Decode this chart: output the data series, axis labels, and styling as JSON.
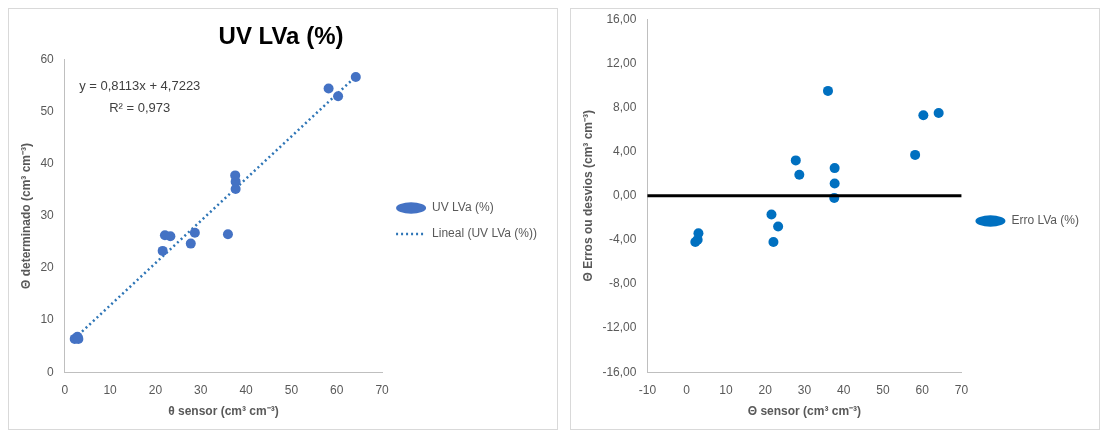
{
  "chart_data": [
    {
      "type": "scatter",
      "title": "UV LVa (%)",
      "xlabel": "θ sensor (cm³ cm⁻³)",
      "ylabel": "Θ determinado (cm³ cm⁻³)",
      "xlim": [
        0,
        70
      ],
      "xticks": [
        0,
        10,
        20,
        30,
        40,
        50,
        60,
        70
      ],
      "ylim": [
        0,
        60
      ],
      "yticks": [
        0,
        10,
        20,
        30,
        40,
        50,
        60
      ],
      "grid": false,
      "legend": "right",
      "marker": "circle",
      "annotations": [
        "y = 0,8113x + 4,7223",
        "R² = 0,973"
      ],
      "series": [
        {
          "name": "UV LVa (%)",
          "color": "#4472c4",
          "x": [
            2.2,
            2.8,
            3.0,
            21.6,
            22.1,
            23.3,
            27.8,
            28.7,
            36.0,
            37.7,
            37.7,
            37.6,
            58.2,
            60.3,
            64.2
          ],
          "values": [
            6.4,
            6.8,
            6.4,
            23.3,
            26.3,
            26.1,
            24.7,
            26.8,
            26.5,
            35.2,
            36.6,
            37.8,
            54.5,
            53.0,
            56.7
          ]
        },
        {
          "name": "Lineal (UV LVa (%))",
          "type": "line",
          "line_style": "dotted",
          "marker": "none",
          "color": "#2e75b6",
          "x": [
            2.2,
            64.2
          ],
          "values": [
            6.5,
            56.8
          ]
        }
      ]
    },
    {
      "type": "scatter",
      "xlabel": "Θ sensor (cm³ cm⁻³)",
      "ylabel": "Θ Erros ou desvios (cm³ cm⁻³)",
      "xlim": [
        -10,
        70
      ],
      "xticks": [
        -10,
        0,
        10,
        20,
        30,
        40,
        50,
        60,
        70
      ],
      "ylim": [
        -16,
        16
      ],
      "yticks": [
        {
          "value": -16,
          "label": "-16,00"
        },
        {
          "value": -12,
          "label": "-12,00"
        },
        {
          "value": -8,
          "label": "-8,00"
        },
        {
          "value": -4,
          "label": "-4,00"
        },
        {
          "value": 0,
          "label": "0,00"
        },
        {
          "value": 4,
          "label": "4,00"
        },
        {
          "value": 8,
          "label": "8,00"
        },
        {
          "value": 12,
          "label": "12,00"
        },
        {
          "value": 16,
          "label": "16,00"
        }
      ],
      "grid": false,
      "legend": "right",
      "marker": "circle",
      "ref_lines": [
        {
          "axis": "y",
          "value": 0,
          "color": "#000000"
        }
      ],
      "series": [
        {
          "name": "Erro LVa (%)",
          "color": "#0070c0",
          "x": [
            2.2,
            2.8,
            3.0,
            21.6,
            22.1,
            23.3,
            27.8,
            28.7,
            36.0,
            37.7,
            37.7,
            37.6,
            58.2,
            60.3,
            64.2
          ],
          "values": [
            -4.2,
            -4.0,
            -3.4,
            -1.7,
            -4.2,
            -2.8,
            3.2,
            1.9,
            9.5,
            2.5,
            1.1,
            -0.2,
            3.7,
            7.3,
            7.5
          ]
        }
      ]
    }
  ]
}
